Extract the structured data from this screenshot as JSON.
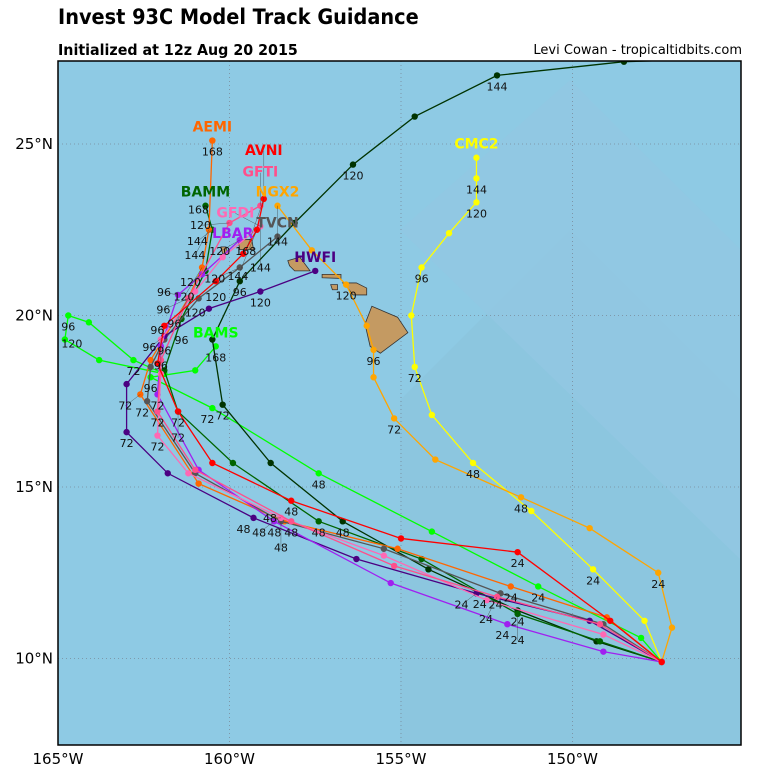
{
  "header": {
    "title": "Invest 93C Model Track Guidance",
    "subtitle": "Initialized at 12z Aug 20 2015",
    "credit": "Levi Cowan - tropicaltidbits.com"
  },
  "chart_data": {
    "type": "map-tracks",
    "title": "Invest 93C Model Track Guidance",
    "lon_range": [
      -165,
      -145
    ],
    "lat_range": [
      7.5,
      27.4
    ],
    "x_ticks": [
      {
        "v": -165,
        "t": "165°W"
      },
      {
        "v": -160,
        "t": "160°W"
      },
      {
        "v": -155,
        "t": "155°W"
      },
      {
        "v": -150,
        "t": "150°W"
      }
    ],
    "y_ticks": [
      {
        "v": 10,
        "t": "10°N"
      },
      {
        "v": 15,
        "t": "15°N"
      },
      {
        "v": 20,
        "t": "20°N"
      },
      {
        "v": 25,
        "t": "25°N"
      }
    ],
    "grid": true,
    "colors": {
      "ocean": "#8ecae4",
      "land": "#c49a62",
      "grid": "#7a8a99"
    },
    "islands": [
      [
        [
          -155.85,
          20.27
        ],
        [
          -155.1,
          19.95
        ],
        [
          -154.8,
          19.5
        ],
        [
          -155.6,
          18.9
        ],
        [
          -155.9,
          19.1
        ],
        [
          -156.05,
          19.75
        ]
      ],
      [
        [
          -156.7,
          20.95
        ],
        [
          -156.3,
          20.95
        ],
        [
          -156.0,
          20.8
        ],
        [
          -156.0,
          20.6
        ],
        [
          -156.4,
          20.6
        ],
        [
          -156.55,
          20.8
        ]
      ],
      [
        [
          -157.3,
          21.2
        ],
        [
          -156.75,
          21.2
        ],
        [
          -156.75,
          21.08
        ],
        [
          -157.3,
          21.1
        ]
      ],
      [
        [
          -157.05,
          20.9
        ],
        [
          -156.85,
          20.9
        ],
        [
          -156.85,
          20.75
        ],
        [
          -157.0,
          20.75
        ]
      ],
      [
        [
          -158.3,
          21.6
        ],
        [
          -157.95,
          21.7
        ],
        [
          -157.65,
          21.3
        ],
        [
          -158.1,
          21.3
        ],
        [
          -158.25,
          21.45
        ]
      ],
      [
        [
          -159.75,
          22.2
        ],
        [
          -159.35,
          22.22
        ],
        [
          -159.3,
          21.92
        ],
        [
          -159.7,
          21.92
        ]
      ],
      [
        [
          -160.25,
          22.0
        ],
        [
          -160.1,
          22.0
        ],
        [
          -160.05,
          21.8
        ],
        [
          -160.2,
          21.8
        ]
      ]
    ],
    "tracks": [
      {
        "name": "CMC2",
        "color": "#ffff00",
        "points": [
          [
            -147.4,
            9.9,
            ""
          ],
          [
            -147.9,
            11.1,
            ""
          ],
          [
            -149.4,
            12.6,
            "24"
          ],
          [
            -151.2,
            14.3,
            ""
          ],
          [
            -152.9,
            15.7,
            "48"
          ],
          [
            -154.1,
            17.1,
            ""
          ],
          [
            -154.6,
            18.5,
            "72"
          ],
          [
            -154.7,
            20.0,
            ""
          ],
          [
            -154.4,
            21.4,
            "96"
          ],
          [
            -153.6,
            22.4,
            ""
          ],
          [
            -152.8,
            23.3,
            "120"
          ],
          [
            -152.8,
            24.0,
            "144"
          ],
          [
            -152.8,
            24.6,
            ""
          ]
        ]
      },
      {
        "name": "NGX2",
        "color": "#ffa500",
        "points": [
          [
            -147.4,
            9.9,
            ""
          ],
          [
            -147.1,
            10.9,
            ""
          ],
          [
            -147.5,
            12.5,
            "24"
          ],
          [
            -149.5,
            13.8,
            ""
          ],
          [
            -151.5,
            14.7,
            "48"
          ],
          [
            -154.0,
            15.8,
            ""
          ],
          [
            -155.2,
            17.0,
            "72"
          ],
          [
            -155.8,
            18.2,
            ""
          ],
          [
            -155.8,
            19.0,
            "96"
          ],
          [
            -156.0,
            19.7,
            ""
          ],
          [
            -156.6,
            20.9,
            "120"
          ],
          [
            -157.6,
            21.9,
            ""
          ],
          [
            -158.6,
            23.2,
            "144"
          ]
        ]
      },
      {
        "name": "",
        "color": "#00ff00",
        "points": [
          [
            -161.9,
            18.3,
            ""
          ],
          [
            -162.8,
            18.7,
            "72"
          ],
          [
            -164.1,
            19.8,
            ""
          ],
          [
            -164.7,
            20.0,
            "96"
          ],
          [
            -164.8,
            19.3,
            "120"
          ],
          [
            -163.8,
            18.7,
            ""
          ],
          [
            -161.9,
            18.3,
            ""
          ]
        ]
      },
      {
        "name": "BAMS",
        "color": "#00ff00",
        "points": [
          [
            -147.4,
            9.9,
            ""
          ],
          [
            -148.0,
            10.6,
            ""
          ],
          [
            -151.0,
            12.1,
            "24"
          ],
          [
            -154.1,
            13.7,
            ""
          ],
          [
            -157.4,
            15.4,
            "48"
          ],
          [
            -160.5,
            17.3,
            "72"
          ],
          [
            -162.3,
            18.2,
            "96"
          ],
          [
            -161.0,
            18.4,
            ""
          ],
          [
            -160.4,
            19.1,
            "168"
          ]
        ]
      },
      {
        "name": "",
        "color": "#003300",
        "points": [
          [
            -147.4,
            9.9,
            ""
          ],
          [
            -149.3,
            10.5,
            ""
          ],
          [
            -151.6,
            11.4,
            "24"
          ],
          [
            -154.2,
            12.6,
            ""
          ],
          [
            -156.7,
            14.0,
            "48"
          ],
          [
            -158.8,
            15.7,
            ""
          ],
          [
            -160.2,
            17.4,
            "72"
          ],
          [
            -160.5,
            19.3,
            ""
          ],
          [
            -159.7,
            21.0,
            "96"
          ],
          [
            -158.1,
            22.7,
            ""
          ],
          [
            -156.4,
            24.4,
            "120"
          ],
          [
            -154.6,
            25.8,
            ""
          ],
          [
            -152.2,
            27.0,
            "144"
          ],
          [
            -148.5,
            27.4,
            ""
          ],
          [
            -145.1,
            27.5,
            ""
          ]
        ]
      },
      {
        "name": "BAMM",
        "color": "#006400",
        "points": [
          [
            -147.4,
            9.9,
            ""
          ],
          [
            -149.2,
            10.5,
            ""
          ],
          [
            -151.6,
            11.3,
            "24"
          ],
          [
            -154.4,
            12.9,
            ""
          ],
          [
            -157.4,
            14.0,
            "48"
          ],
          [
            -159.9,
            15.7,
            ""
          ],
          [
            -161.5,
            17.2,
            "72"
          ],
          [
            -161.9,
            18.4,
            ""
          ],
          [
            -161.4,
            19.9,
            "96"
          ],
          [
            -160.7,
            21.3,
            "120"
          ],
          [
            -160.5,
            22.5,
            "144"
          ],
          [
            -160.7,
            23.2,
            "168"
          ]
        ]
      },
      {
        "name": "AEMI",
        "color": "#ff6600",
        "points": [
          [
            -147.4,
            9.9,
            ""
          ],
          [
            -149.0,
            11.2,
            ""
          ],
          [
            -151.8,
            12.1,
            "24"
          ],
          [
            -155.1,
            13.2,
            ""
          ],
          [
            -158.4,
            14.0,
            "48"
          ],
          [
            -160.9,
            15.1,
            ""
          ],
          [
            -162.6,
            17.7,
            "72"
          ],
          [
            -162.3,
            18.7,
            ""
          ],
          [
            -161.2,
            20.5,
            "96"
          ],
          [
            -160.8,
            21.4,
            "120"
          ],
          [
            -160.6,
            22.5,
            "144"
          ],
          [
            -160.5,
            25.1,
            "168"
          ]
        ]
      },
      {
        "name": "TVCN",
        "color": "#555555",
        "points": [
          [
            -147.4,
            9.9,
            ""
          ],
          [
            -149.1,
            11.0,
            ""
          ],
          [
            -152.1,
            11.9,
            "24"
          ],
          [
            -155.5,
            13.2,
            ""
          ],
          [
            -158.5,
            14.0,
            "48"
          ],
          [
            -161.0,
            15.4,
            ""
          ],
          [
            -162.4,
            17.5,
            "72"
          ],
          [
            -162.3,
            18.5,
            ""
          ],
          [
            -161.9,
            19.3,
            "96"
          ],
          [
            -160.9,
            20.5,
            ""
          ],
          [
            -159.7,
            21.4,
            "120"
          ],
          [
            -158.6,
            22.3,
            ""
          ]
        ]
      },
      {
        "name": "HWFI",
        "color": "#4b0082",
        "points": [
          [
            -147.4,
            9.9,
            ""
          ],
          [
            -149.5,
            11.1,
            ""
          ],
          [
            -152.8,
            11.9,
            "24"
          ],
          [
            -156.3,
            12.9,
            ""
          ],
          [
            -159.3,
            14.1,
            "48"
          ],
          [
            -161.8,
            15.4,
            ""
          ],
          [
            -163.0,
            16.6,
            "72"
          ],
          [
            -163.0,
            18.0,
            ""
          ],
          [
            -161.9,
            19.4,
            "96"
          ],
          [
            -160.6,
            20.2,
            ""
          ],
          [
            -159.1,
            20.7,
            "120"
          ],
          [
            -157.5,
            21.3,
            ""
          ]
        ]
      },
      {
        "name": "LBAR",
        "color": "#a020f0",
        "points": [
          [
            -147.4,
            9.9,
            ""
          ],
          [
            -149.1,
            10.2,
            ""
          ],
          [
            -151.9,
            11.0,
            "24"
          ],
          [
            -155.3,
            12.2,
            ""
          ],
          [
            -158.7,
            14.0,
            "48"
          ],
          [
            -160.9,
            15.5,
            ""
          ],
          [
            -162.1,
            17.7,
            "72"
          ],
          [
            -162.0,
            19.1,
            ""
          ],
          [
            -161.5,
            20.6,
            "96"
          ],
          [
            -160.8,
            21.2,
            ""
          ],
          [
            -159.7,
            22.2,
            "120"
          ]
        ]
      },
      {
        "name": "GFDI",
        "color": "#ff69b4",
        "points": [
          [
            -147.4,
            9.9,
            ""
          ],
          [
            -149.1,
            10.7,
            ""
          ],
          [
            -152.5,
            11.7,
            "24"
          ],
          [
            -155.5,
            13.0,
            ""
          ],
          [
            -158.5,
            14.1,
            "48"
          ],
          [
            -161.2,
            15.4,
            ""
          ],
          [
            -162.1,
            16.5,
            "72"
          ],
          [
            -162.0,
            18.3,
            ""
          ],
          [
            -162.0,
            19.3,
            "96"
          ],
          [
            -161.0,
            20.7,
            "120"
          ],
          [
            -160.2,
            21.7,
            ""
          ],
          [
            -159.1,
            22.6,
            "144"
          ]
        ]
      },
      {
        "name": "GFTI",
        "color": "#ff4f8b",
        "points": [
          [
            -147.4,
            9.9,
            ""
          ],
          [
            -149.2,
            11.0,
            ""
          ],
          [
            -152.2,
            11.8,
            "24"
          ],
          [
            -155.2,
            12.7,
            ""
          ],
          [
            -158.2,
            14.0,
            "48"
          ],
          [
            -161.0,
            15.5,
            ""
          ],
          [
            -162.1,
            17.2,
            "72"
          ],
          [
            -162.0,
            18.7,
            ""
          ],
          [
            -161.2,
            20.5,
            "96"
          ],
          [
            -160.0,
            22.7,
            "120"
          ],
          [
            -159.1,
            23.2,
            ""
          ]
        ]
      },
      {
        "name": "AVNI",
        "color": "#ff0000",
        "points": [
          [
            -147.4,
            9.9,
            ""
          ],
          [
            -148.9,
            11.1,
            ""
          ],
          [
            -151.6,
            13.1,
            "24"
          ],
          [
            -155.0,
            13.5,
            ""
          ],
          [
            -158.2,
            14.6,
            "48"
          ],
          [
            -160.5,
            15.7,
            ""
          ],
          [
            -161.5,
            17.2,
            "72"
          ],
          [
            -162.1,
            18.6,
            ""
          ],
          [
            -161.9,
            19.7,
            "96"
          ],
          [
            -160.4,
            21.0,
            "120"
          ],
          [
            -159.6,
            21.8,
            ""
          ],
          [
            -159.2,
            22.5,
            "144"
          ],
          [
            -159.0,
            23.4,
            "168"
          ]
        ]
      }
    ]
  }
}
